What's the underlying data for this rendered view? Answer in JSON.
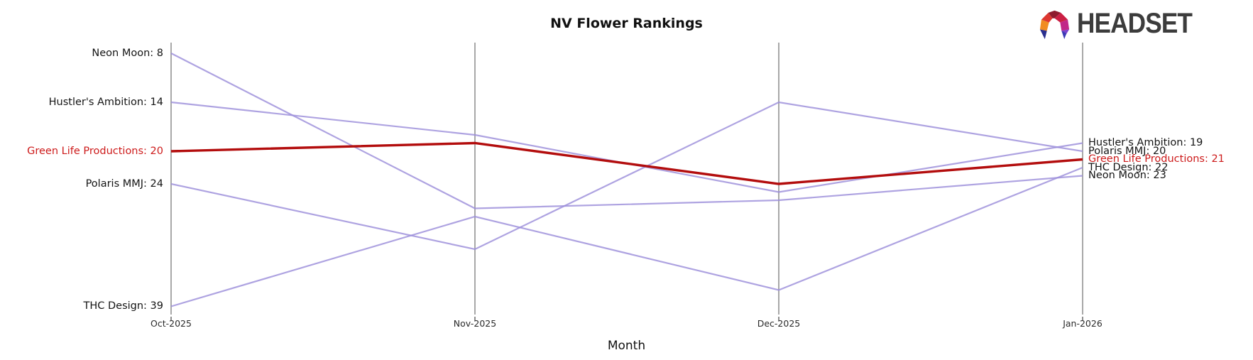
{
  "header": {
    "title": "NV Flower Rankings",
    "logo_text": "HEADSET"
  },
  "colors": {
    "line": "#9c8fdb",
    "highlight_line": "#b30d0d",
    "highlight_text": "#cd1a1a",
    "label_text": "#141414",
    "axis": "#a8a8a8",
    "tick": "#444444"
  },
  "chart_data": {
    "type": "line",
    "variant": "parallel-coordinates-rank-bump",
    "title": "NV Flower Rankings",
    "xlabel": "Month",
    "x_categories": [
      "Oct-2025",
      "Nov-2025",
      "Dec-2025",
      "Jan-2026"
    ],
    "y_axis": {
      "note": "rank, better (lower) rank drawn higher",
      "top_visible_rank": 8,
      "bottom_visible_rank": 39
    },
    "legend": "none - series labeled at line start and end",
    "series": [
      {
        "name": "Neon Moon",
        "values": [
          8,
          27,
          26,
          23
        ],
        "start_label": "Neon Moon: 8",
        "end_label": "Neon Moon: 23",
        "highlighted": false
      },
      {
        "name": "Hustler's Ambition",
        "values": [
          14,
          18,
          25,
          19
        ],
        "start_label": "Hustler's Ambition: 14",
        "end_label": "Hustler's Ambition: 19",
        "highlighted": false
      },
      {
        "name": "Green Life Productions",
        "values": [
          20,
          19,
          24,
          21
        ],
        "start_label": "Green Life Productions: 20",
        "end_label": "Green Life Productions: 21",
        "highlighted": true
      },
      {
        "name": "Polaris MMJ",
        "values": [
          24,
          32,
          14,
          20
        ],
        "start_label": "Polaris MMJ: 24",
        "end_label": "Polaris MMJ: 20",
        "highlighted": false
      },
      {
        "name": "THC Design",
        "values": [
          39,
          28,
          37,
          22
        ],
        "start_label": "THC Design: 39",
        "end_label": "THC Design: 22",
        "highlighted": false
      }
    ]
  }
}
